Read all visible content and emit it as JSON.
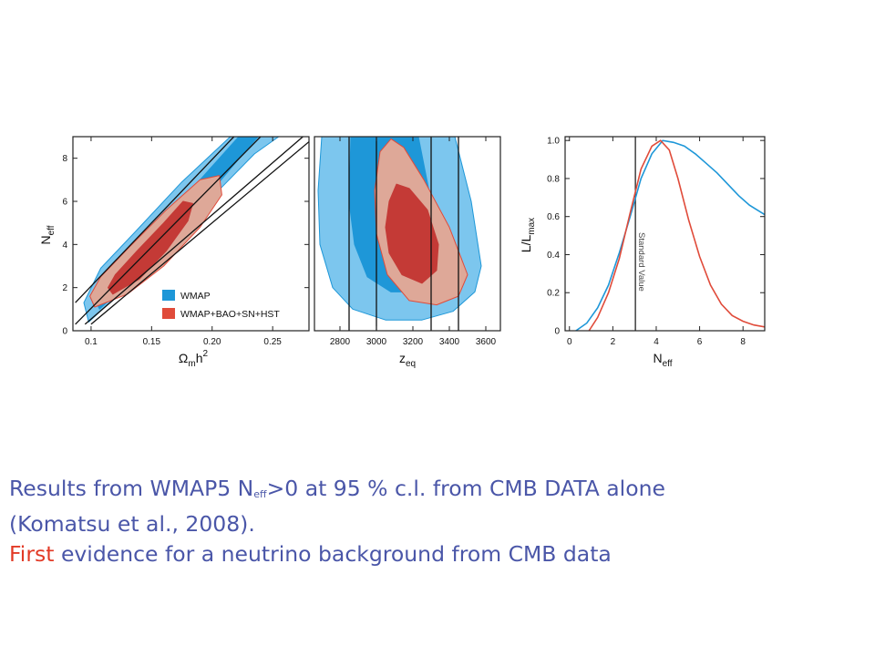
{
  "colors": {
    "wmap_outer": "#7cc6ee",
    "wmap_inner": "#1e97d8",
    "combo_outer": "#dea898",
    "combo_inner": "#c43a36",
    "combo_edge": "#e04b3a",
    "caption_text": "#4a56a8",
    "caption_highlight": "#e23a26"
  },
  "chart_data": [
    {
      "type": "contour",
      "xlabel_main": "Ω",
      "xlabel_sub": "m",
      "xlabel_tail": "h",
      "xlabel_sup": "2",
      "ylabel_main": "N",
      "ylabel_sub": "eff",
      "xlim": [
        0.085,
        0.28
      ],
      "ylim": [
        0,
        9
      ],
      "xticks": [
        "0.1",
        "0.15",
        "0.20",
        "0.25"
      ],
      "xtick_values": [
        0.1,
        0.15,
        0.2,
        0.25
      ],
      "yticks": [
        "0",
        "2",
        "4",
        "6",
        "8"
      ],
      "ytick_values": [
        0,
        2,
        4,
        6,
        8
      ],
      "legend": [
        "WMAP",
        "WMAP+BAO+SN+HST"
      ],
      "legend_position": "bottom-right",
      "contours": {
        "wmap_95": [
          [
            0.098,
            0.4
          ],
          [
            0.125,
            1.8
          ],
          [
            0.16,
            3.9
          ],
          [
            0.2,
            6.2
          ],
          [
            0.235,
            8.2
          ],
          [
            0.255,
            9.0
          ],
          [
            0.215,
            9.0
          ],
          [
            0.175,
            6.9
          ],
          [
            0.14,
            4.8
          ],
          [
            0.108,
            2.9
          ],
          [
            0.094,
            1.3
          ]
        ],
        "wmap_68": [
          [
            0.107,
            1.0
          ],
          [
            0.132,
            2.3
          ],
          [
            0.165,
            4.3
          ],
          [
            0.2,
            6.5
          ],
          [
            0.227,
            8.3
          ],
          [
            0.238,
            9.0
          ],
          [
            0.222,
            9.0
          ],
          [
            0.19,
            7.0
          ],
          [
            0.152,
            4.7
          ],
          [
            0.12,
            2.9
          ],
          [
            0.102,
            1.6
          ]
        ],
        "combo_95": [
          [
            0.103,
            1.1
          ],
          [
            0.13,
            1.7
          ],
          [
            0.16,
            3.0
          ],
          [
            0.19,
            4.8
          ],
          [
            0.208,
            6.3
          ],
          [
            0.206,
            7.2
          ],
          [
            0.19,
            7.0
          ],
          [
            0.162,
            5.6
          ],
          [
            0.132,
            3.9
          ],
          [
            0.108,
            2.5
          ],
          [
            0.099,
            1.6
          ]
        ],
        "combo_68": [
          [
            0.118,
            1.7
          ],
          [
            0.14,
            2.4
          ],
          [
            0.162,
            3.7
          ],
          [
            0.18,
            5.1
          ],
          [
            0.184,
            5.9
          ],
          [
            0.176,
            6.0
          ],
          [
            0.16,
            5.0
          ],
          [
            0.138,
            3.7
          ],
          [
            0.12,
            2.6
          ],
          [
            0.114,
            2.0
          ]
        ]
      },
      "lines": [
        {
          "x": [
            0.087,
            0.24
          ],
          "y": [
            0.3,
            9.0
          ]
        },
        {
          "x": [
            0.087,
            0.218
          ],
          "y": [
            1.3,
            9.0
          ]
        },
        {
          "x": [
            0.095,
            0.275
          ],
          "y": [
            0.3,
            9.0
          ]
        },
        {
          "x": [
            0.1,
            0.285
          ],
          "y": [
            0.3,
            9.0
          ]
        }
      ]
    },
    {
      "type": "contour",
      "xlabel_main": "z",
      "xlabel_sub": "eq",
      "xlim": [
        2660,
        3680
      ],
      "ylim": [
        0,
        9
      ],
      "xticks": [
        "2800",
        "3000",
        "3200",
        "3400",
        "3600"
      ],
      "xtick_values": [
        2800,
        3000,
        3200,
        3400,
        3600
      ],
      "yticks": [],
      "contours": {
        "wmap_95": [
          [
            2700,
            9.0
          ],
          [
            2680,
            6.5
          ],
          [
            2690,
            4.0
          ],
          [
            2760,
            2.0
          ],
          [
            2870,
            1.0
          ],
          [
            3050,
            0.5
          ],
          [
            3250,
            0.5
          ],
          [
            3420,
            0.9
          ],
          [
            3540,
            1.8
          ],
          [
            3575,
            3.0
          ],
          [
            3520,
            6.0
          ],
          [
            3430,
            9.0
          ]
        ],
        "wmap_68": [
          [
            2860,
            9.0
          ],
          [
            2850,
            6.0
          ],
          [
            2880,
            4.0
          ],
          [
            2950,
            2.5
          ],
          [
            3080,
            1.8
          ],
          [
            3200,
            1.8
          ],
          [
            3300,
            2.5
          ],
          [
            3330,
            3.8
          ],
          [
            3300,
            6.0
          ],
          [
            3230,
            9.0
          ]
        ],
        "combo_95": [
          [
            3080,
            8.9
          ],
          [
            3020,
            8.3
          ],
          [
            2990,
            6.5
          ],
          [
            3000,
            4.5
          ],
          [
            3060,
            2.6
          ],
          [
            3180,
            1.4
          ],
          [
            3330,
            1.2
          ],
          [
            3450,
            1.6
          ],
          [
            3500,
            2.6
          ],
          [
            3400,
            4.8
          ],
          [
            3260,
            7.0
          ],
          [
            3150,
            8.5
          ]
        ],
        "combo_68": [
          [
            3110,
            6.8
          ],
          [
            3070,
            6.0
          ],
          [
            3050,
            4.8
          ],
          [
            3070,
            3.6
          ],
          [
            3140,
            2.6
          ],
          [
            3250,
            2.2
          ],
          [
            3330,
            2.8
          ],
          [
            3340,
            4.0
          ],
          [
            3280,
            5.6
          ],
          [
            3180,
            6.6
          ]
        ]
      },
      "vlines": [
        2850,
        3000,
        3300,
        3450
      ]
    },
    {
      "type": "line",
      "xlabel_main": "N",
      "xlabel_sub": "eff",
      "ylabel_main": "L/L",
      "ylabel_sub": "max",
      "xlim": [
        -0.2,
        9
      ],
      "ylim": [
        0,
        1.02
      ],
      "xticks": [
        "0",
        "2",
        "4",
        "6",
        "8"
      ],
      "xtick_values": [
        0,
        2,
        4,
        6,
        8
      ],
      "yticks": [
        "0",
        "0.2",
        "0.4",
        "0.6",
        "0.8",
        "1.0"
      ],
      "ytick_values": [
        0,
        0.2,
        0.4,
        0.6,
        0.8,
        1.0
      ],
      "vline_x": 3.04,
      "annotation": "Standard Value",
      "series": [
        {
          "color": "wmap",
          "x": [
            0.3,
            0.8,
            1.3,
            1.8,
            2.3,
            2.8,
            3.3,
            3.8,
            4.3,
            4.8,
            5.3,
            5.8,
            6.3,
            6.8,
            7.3,
            7.8,
            8.3,
            9.0
          ],
          "y": [
            0.0,
            0.04,
            0.12,
            0.24,
            0.41,
            0.6,
            0.8,
            0.93,
            1.0,
            0.99,
            0.97,
            0.93,
            0.88,
            0.83,
            0.77,
            0.71,
            0.66,
            0.61
          ]
        },
        {
          "color": "combo",
          "x": [
            0.9,
            1.3,
            1.8,
            2.3,
            2.8,
            3.3,
            3.8,
            4.2,
            4.6,
            5.0,
            5.5,
            6.0,
            6.5,
            7.0,
            7.5,
            8.0,
            8.5,
            9.0
          ],
          "y": [
            0.0,
            0.07,
            0.2,
            0.38,
            0.62,
            0.85,
            0.97,
            1.0,
            0.95,
            0.8,
            0.58,
            0.39,
            0.24,
            0.14,
            0.08,
            0.05,
            0.03,
            0.02
          ]
        }
      ]
    }
  ],
  "caption": {
    "line1_prefix": "Results from WMAP5 N",
    "line1_sub": "eff",
    "line1_suffix": ">0 at 95 % c.l. from CMB DATA alone",
    "line2": "(Komatsu et al., 2008).",
    "line3_highlight": "First",
    "line3_rest": " evidence for a neutrino background from CMB data"
  }
}
